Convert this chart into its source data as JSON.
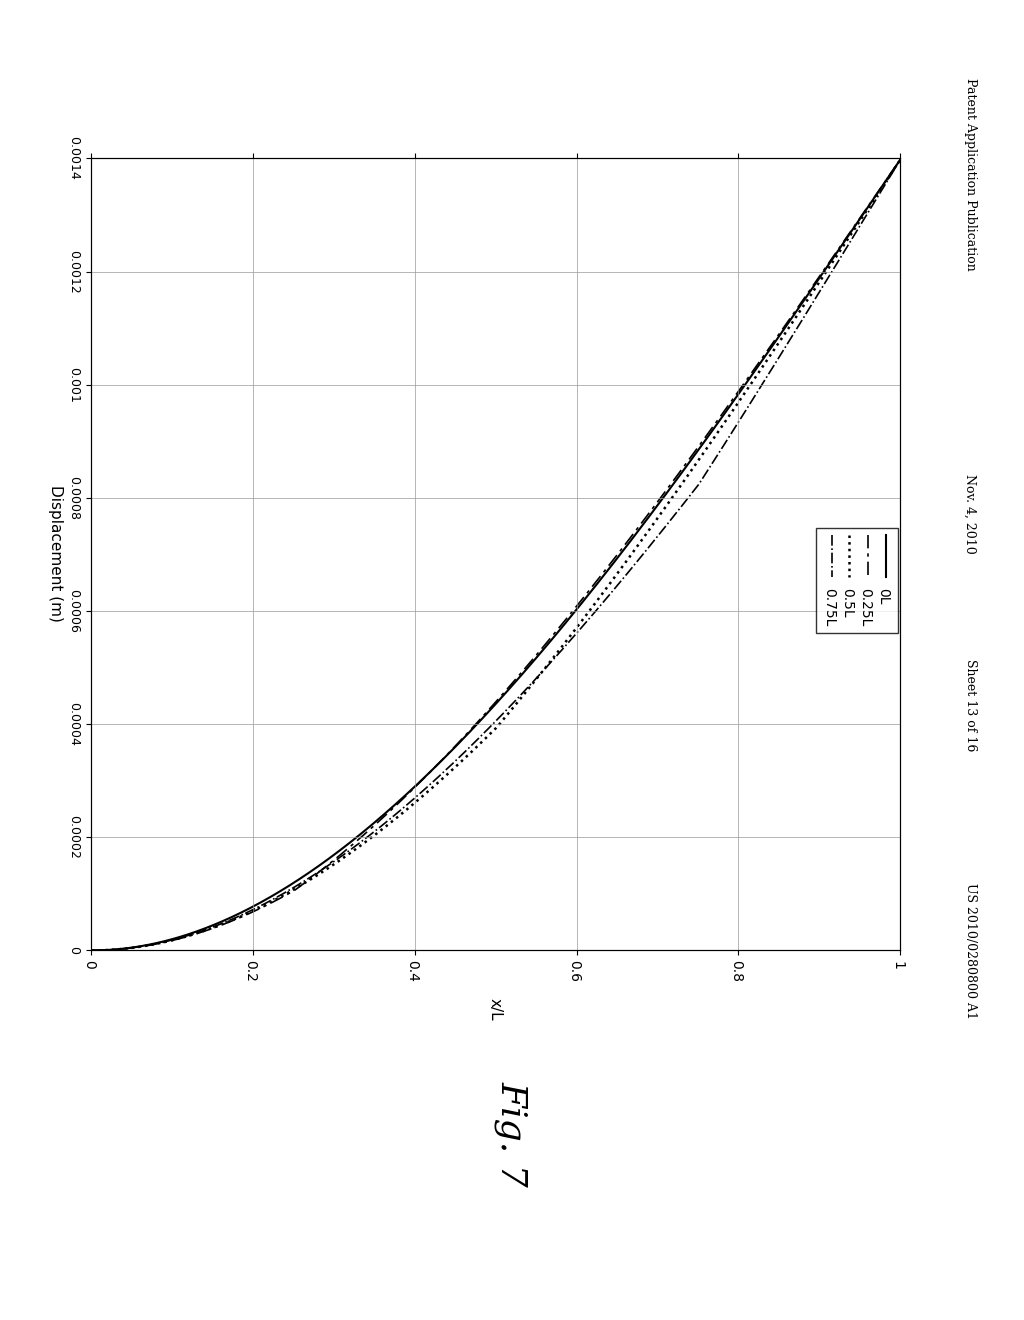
{
  "title": "",
  "xlabel": "Displacement (m)",
  "ylabel": "x/L",
  "xlim_reversed": [
    0.0014,
    0
  ],
  "ylim": [
    0,
    1.0
  ],
  "xticks": [
    0,
    0.0002,
    0.0004,
    0.0006,
    0.0008,
    0.001,
    0.0012,
    0.0014
  ],
  "xtick_labels": [
    "0",
    "0.0002",
    "0.0004",
    "0.0006",
    "0.0008",
    "0.001",
    "0.0012",
    "0.0014"
  ],
  "yticks": [
    0,
    0.2,
    0.4,
    0.6,
    0.8,
    1.0
  ],
  "ytick_labels": [
    "0",
    "0.2",
    "0.4",
    "0.6",
    "0.8",
    "1"
  ],
  "legend_labels": [
    "0L",
    "0.25L",
    "0.5L",
    "0.75L"
  ],
  "fig_label": "Fig. 7",
  "header_left": "Patent Application Publication",
  "header_mid1": "Nov. 4, 2010",
  "header_mid2": "Sheet 13 of 16",
  "header_right": "US 2010/0280800 A1",
  "background_color": "#ffffff",
  "line_color": "#000000",
  "font_size": 10,
  "grid_color": "#999999",
  "max_disp": 0.0014
}
